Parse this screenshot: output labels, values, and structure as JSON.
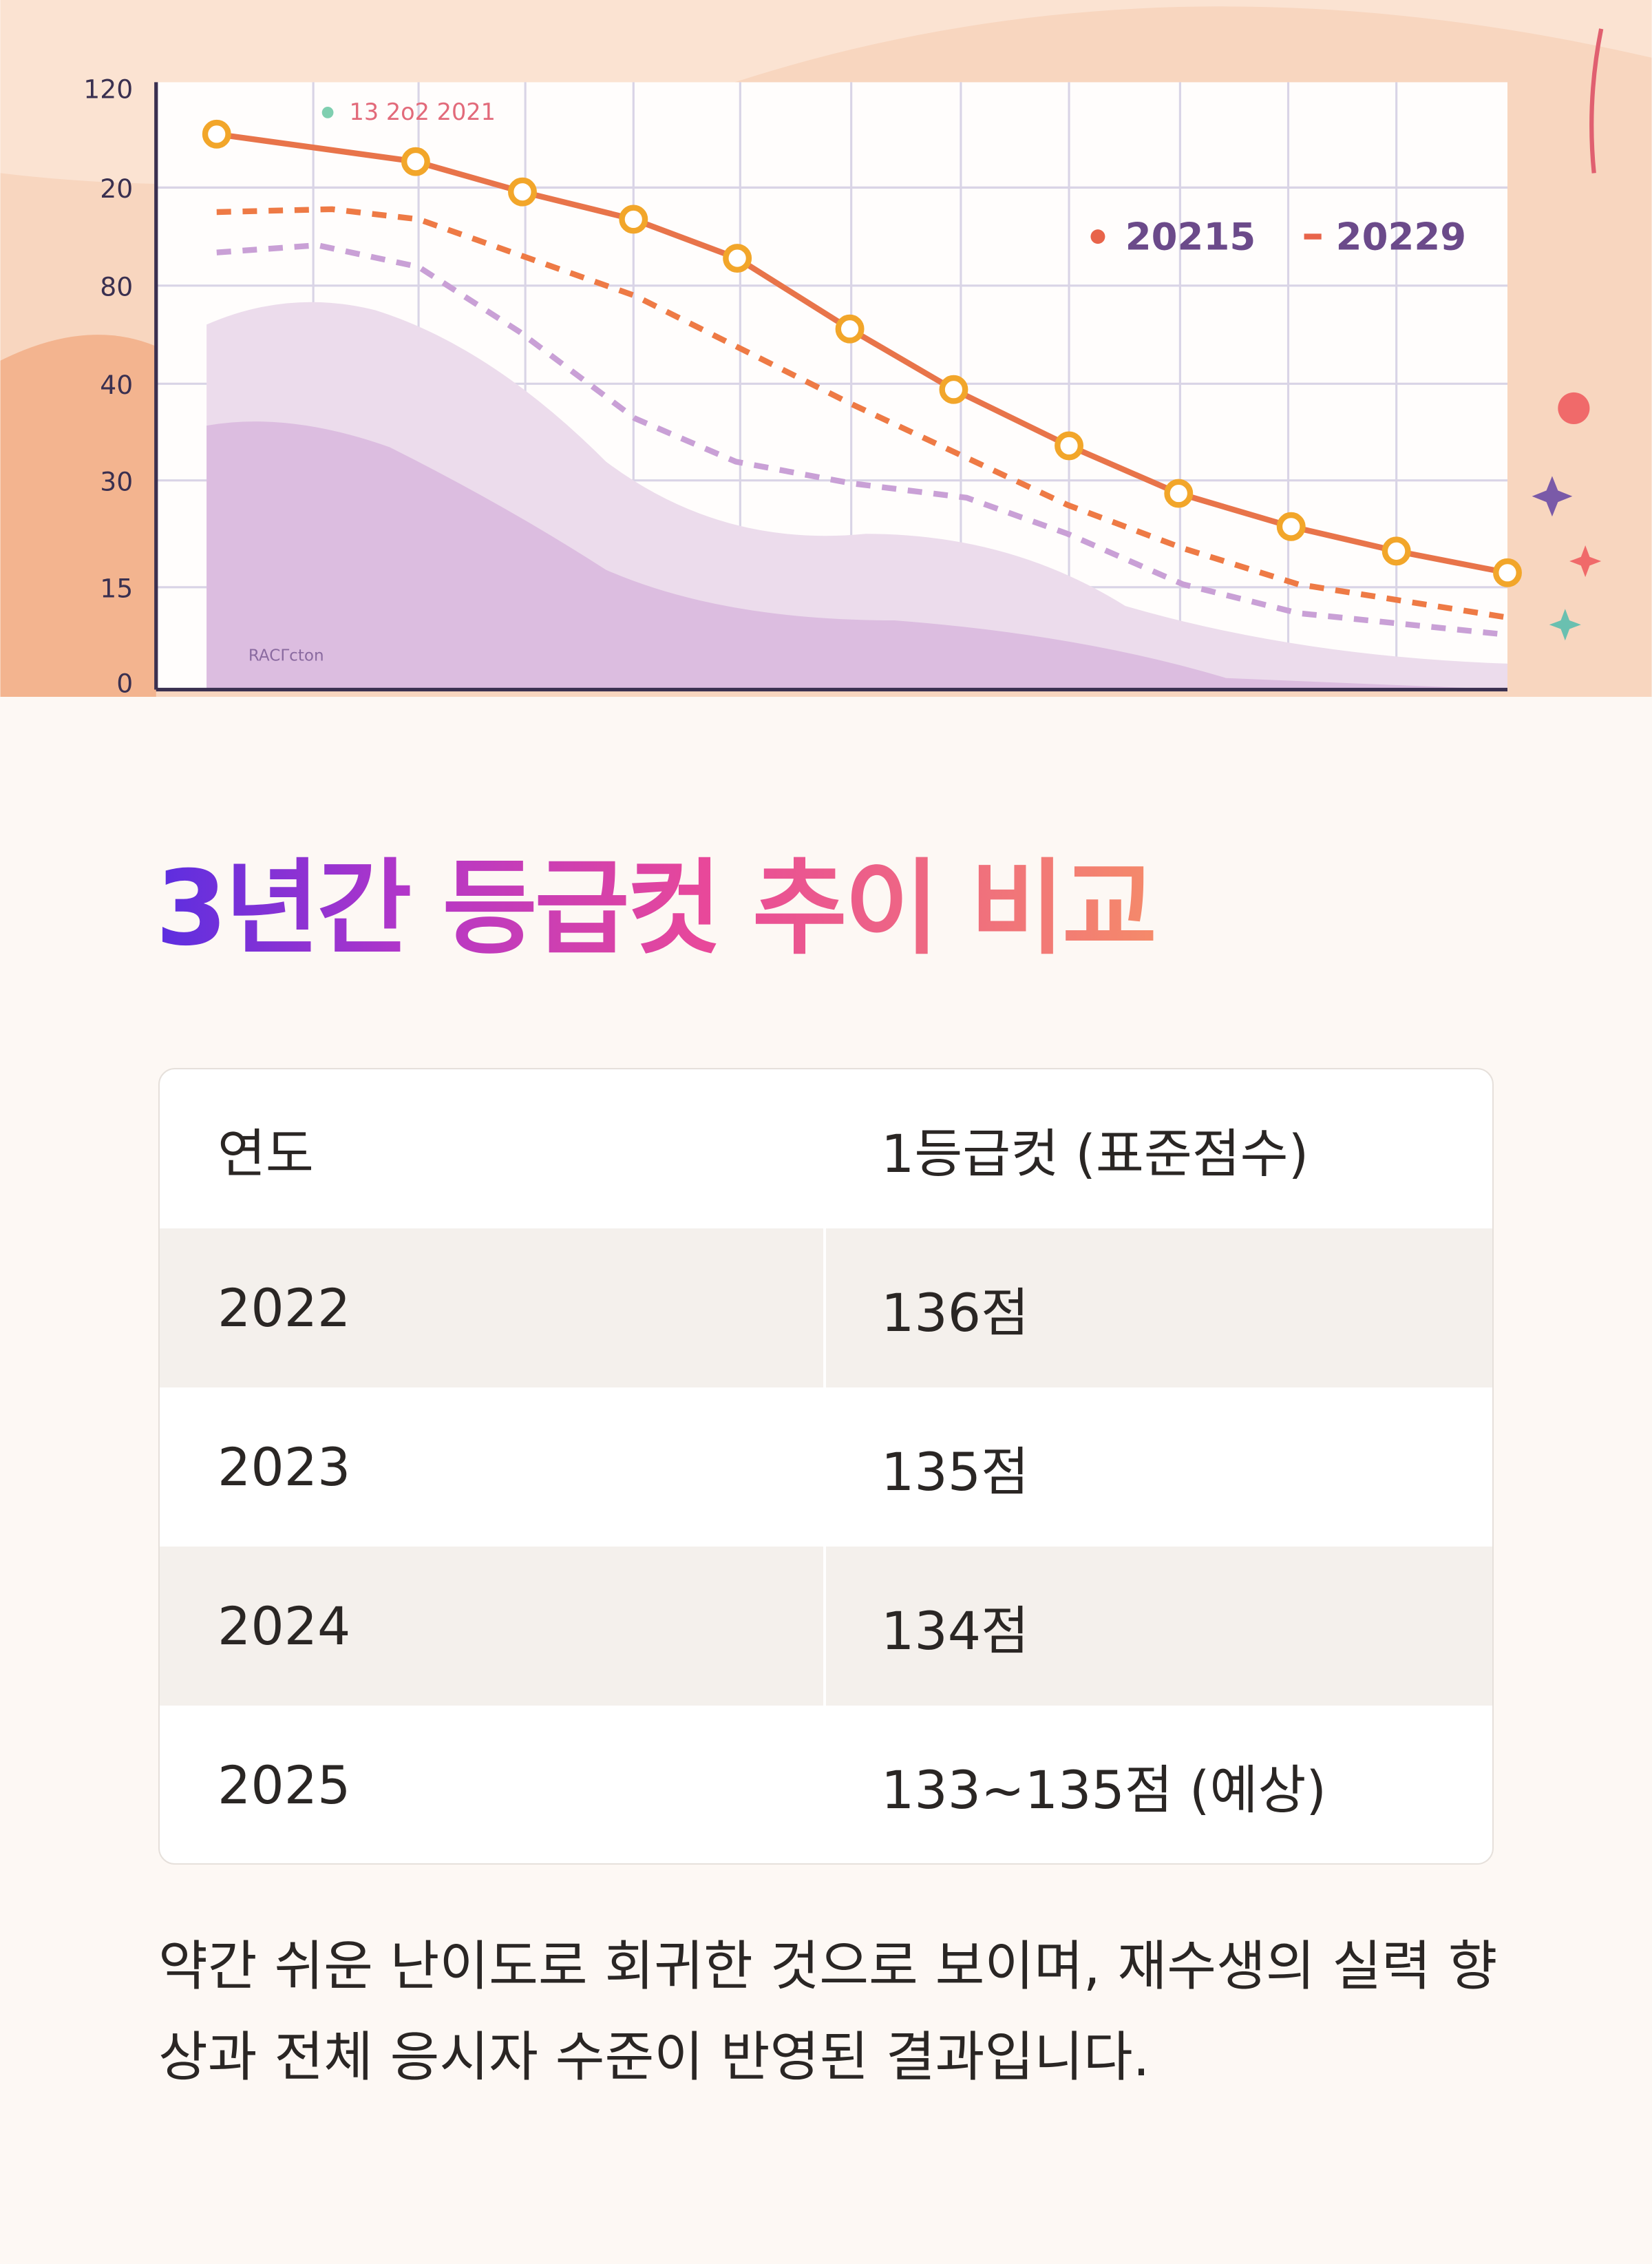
{
  "image": {
    "y_labels": [
      "120",
      "20",
      "80",
      "40",
      "30",
      "15",
      "0"
    ],
    "legend_top": "13 2o2 2021",
    "legend": [
      "20215",
      "20229"
    ],
    "watermark": "RACΓcton"
  },
  "heading": "3년간 등급컷 추이 비교",
  "table": {
    "header": [
      "연도",
      "1등급컷 (표준점수)"
    ],
    "rows": [
      [
        "2022",
        "136점"
      ],
      [
        "2023",
        "135점"
      ],
      [
        "2024",
        "134점"
      ],
      [
        "2025",
        "133~135점 (예상)"
      ]
    ]
  },
  "paragraph": "약간 쉬운 난이도로 회귀한 것으로 보이며, 재수생의 실력 향상과 전체 응시자 수준이 반영된 결과입니다."
}
